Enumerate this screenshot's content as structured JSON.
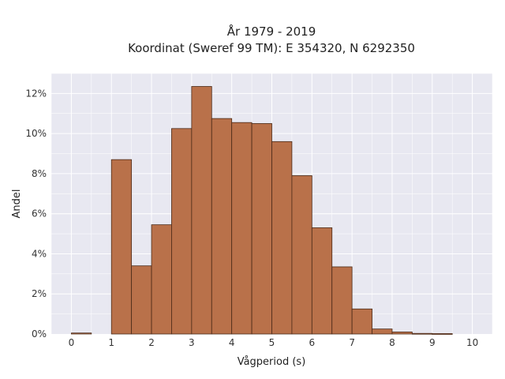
{
  "chart_data": {
    "type": "bar",
    "title": "År 1979 - 2019",
    "subtitle": "Koordinat (Sweref 99 TM): E 354320, N 6292350",
    "xlabel": "Vågperiod (s)",
    "ylabel": "Andel",
    "xlim": [
      -0.5,
      10.5
    ],
    "ylim": [
      0,
      13
    ],
    "bin_width": 0.5,
    "bin_starts": [
      0,
      0.5,
      1,
      1.5,
      2,
      2.5,
      3,
      3.5,
      4,
      4.5,
      5,
      5.5,
      6,
      6.5,
      7,
      7.5,
      8,
      8.5,
      9,
      9.5
    ],
    "values": [
      0.05,
      0,
      8.7,
      3.4,
      5.45,
      10.25,
      12.35,
      10.75,
      10.55,
      10.5,
      9.6,
      7.9,
      5.3,
      3.35,
      1.25,
      0.25,
      0.1,
      0.03,
      0.02,
      0
    ],
    "x_ticks": [
      0,
      1,
      2,
      3,
      4,
      5,
      6,
      7,
      8,
      9,
      10
    ],
    "x_tick_labels": [
      "0",
      "1",
      "2",
      "3",
      "4",
      "5",
      "6",
      "7",
      "8",
      "9",
      "10"
    ],
    "y_ticks": [
      0,
      2,
      4,
      6,
      8,
      10,
      12
    ],
    "y_tick_labels": [
      "0%",
      "2%",
      "4%",
      "6%",
      "8%",
      "10%",
      "12%"
    ],
    "grid": true,
    "colors": {
      "bar_fill": "#b9714a",
      "bar_edge": "#4a2a18",
      "plot_bg": "#e8e8f1",
      "grid": "#ffffff"
    }
  }
}
